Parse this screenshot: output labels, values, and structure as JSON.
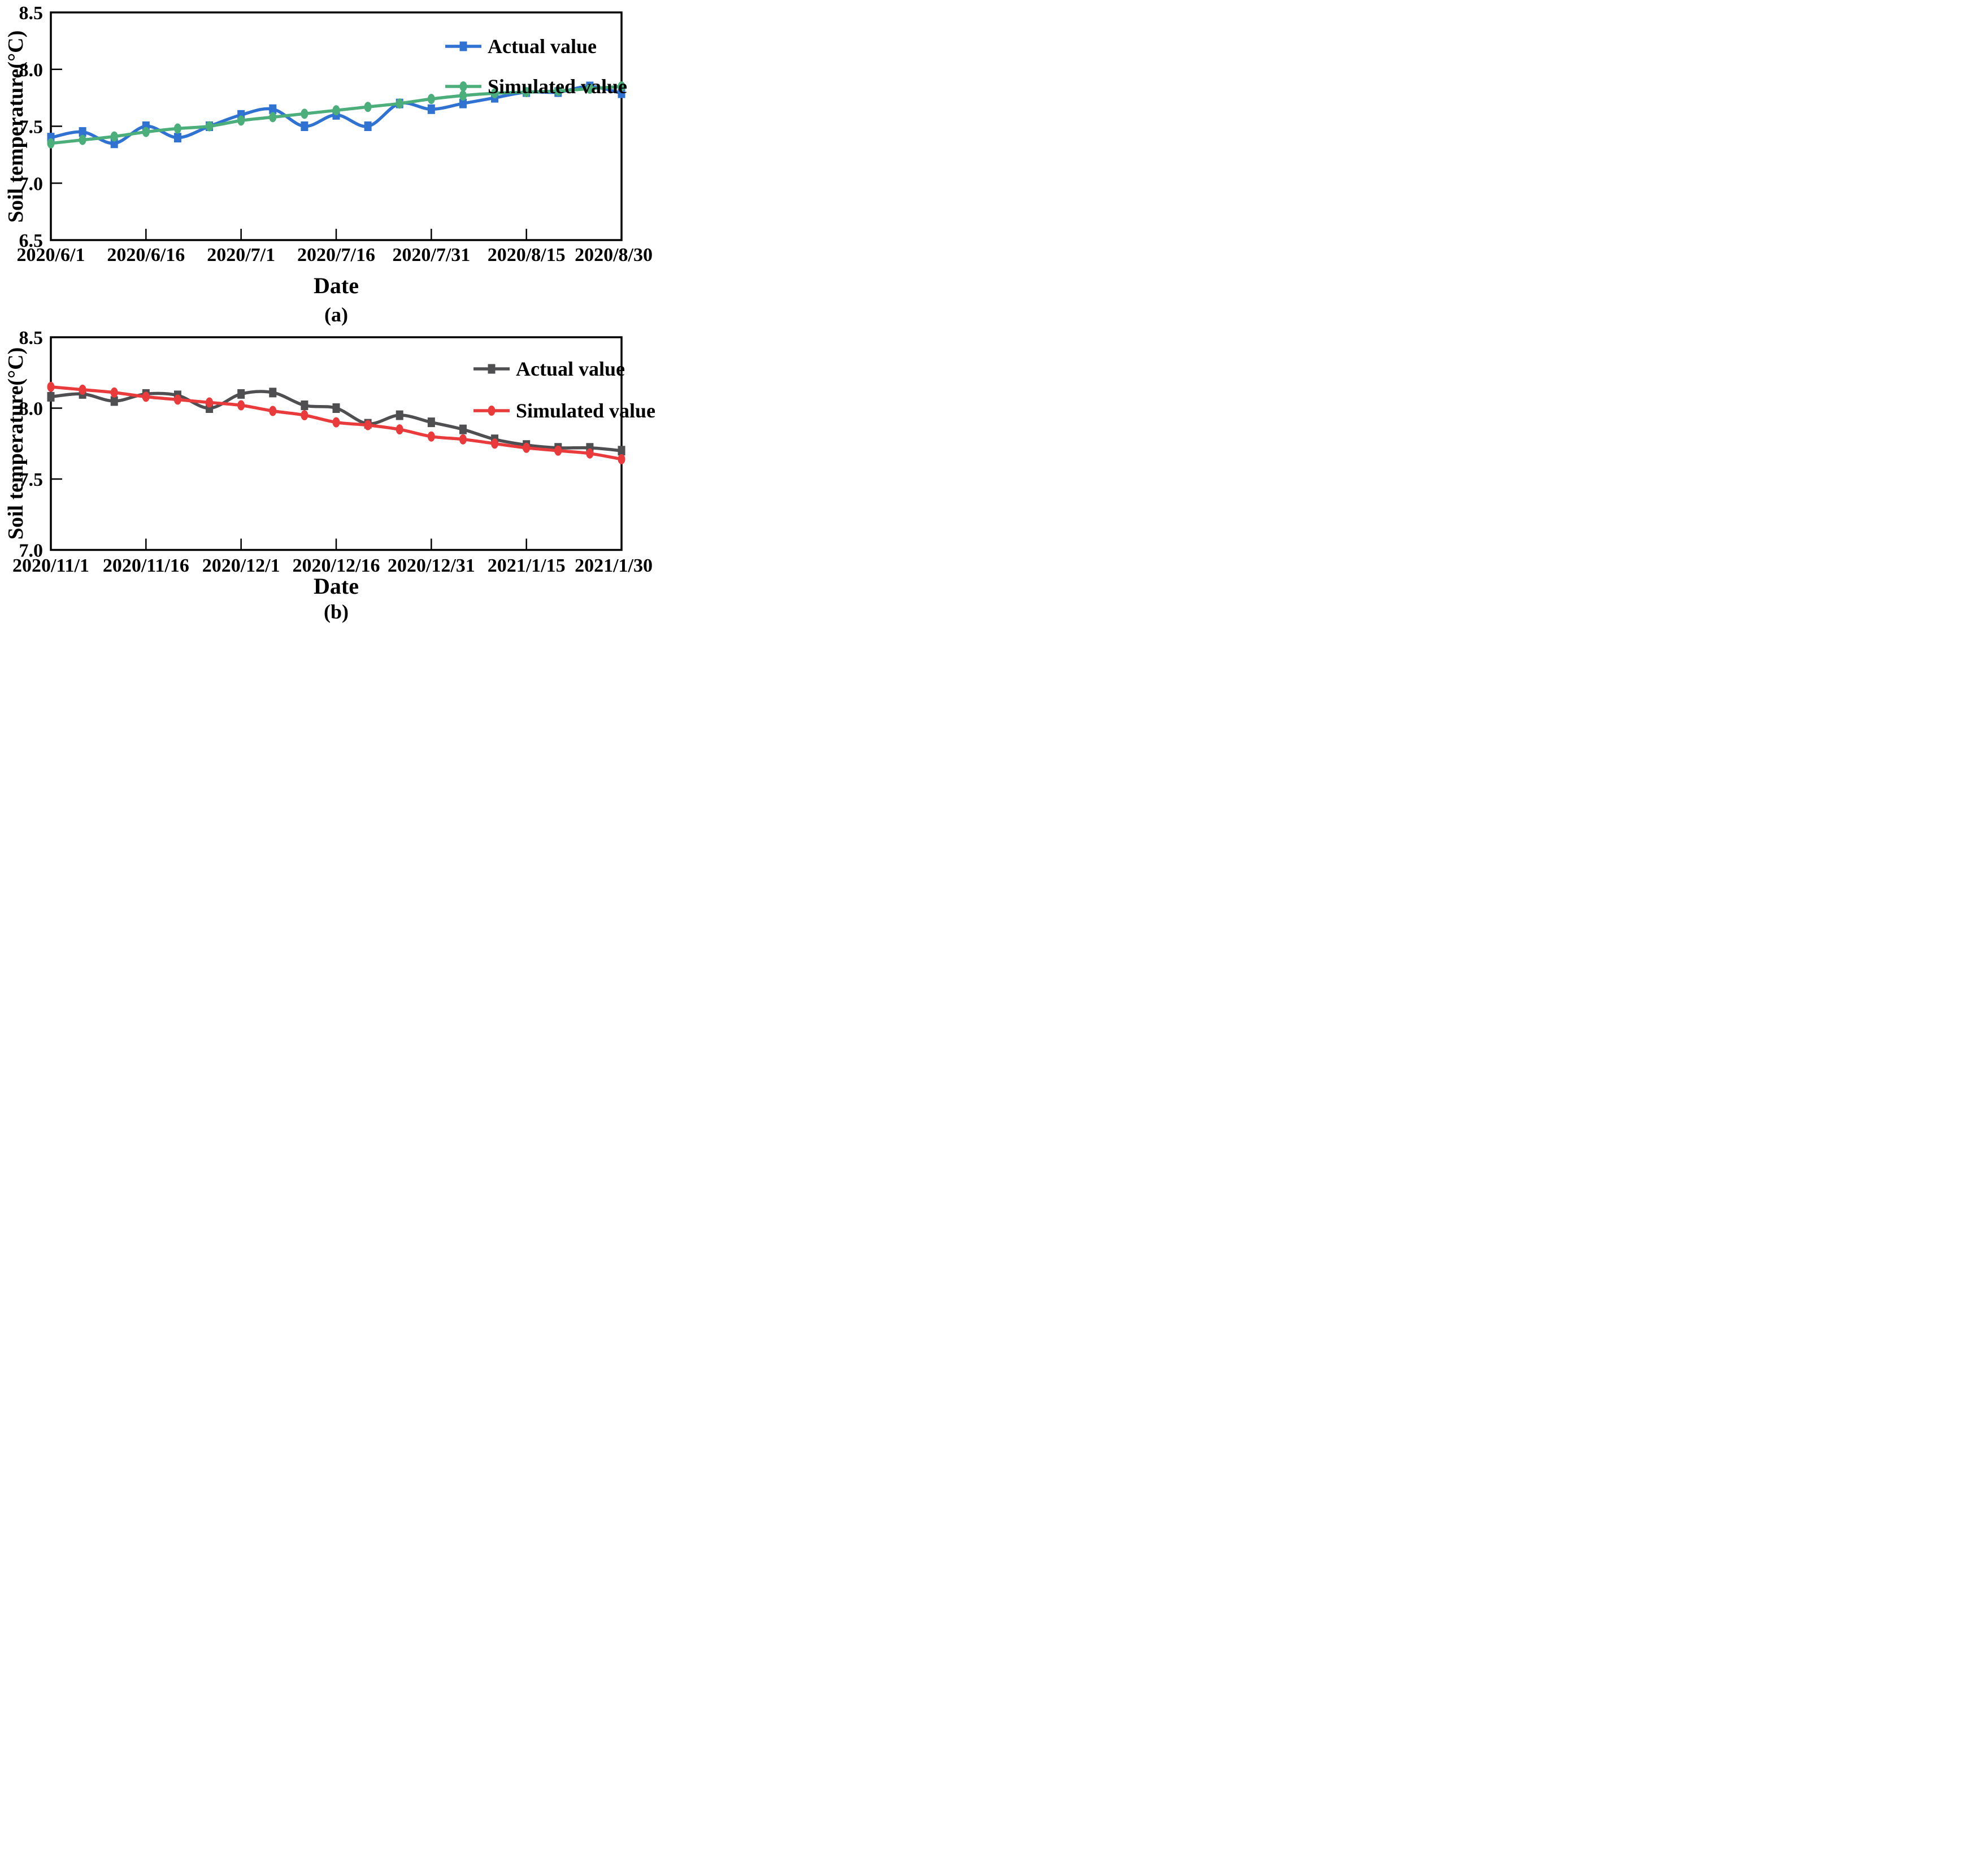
{
  "page": {
    "background": "#ffffff"
  },
  "panels": [
    {
      "panel_label": "(a)",
      "xlabel": "Date",
      "ylabel": "Soil temperature(°C)",
      "legend": [
        {
          "label": "Actual value",
          "color": "#2F72D2",
          "marker": "square"
        },
        {
          "label": "Simulated value",
          "color": "#4BAE7B",
          "marker": "circle"
        }
      ]
    },
    {
      "panel_label": "(b)",
      "xlabel": "Date",
      "ylabel": "Soil temperature(°C)",
      "legend": [
        {
          "label": "Actual value",
          "color": "#4F4F51",
          "marker": "square"
        },
        {
          "label": "Simulated value",
          "color": "#E93A3C",
          "marker": "circle"
        }
      ]
    }
  ],
  "chart_data": [
    {
      "type": "line",
      "panel": "a",
      "title": "",
      "xlabel": "Date",
      "ylabel": "Soil temperature(°C)",
      "ylim": [
        6.5,
        8.5
      ],
      "y_tick_labels": [
        "8.5",
        "8.0",
        "7.5",
        "7.0",
        "6.5"
      ],
      "y_tick_values": [
        8.5,
        8.0,
        7.5,
        7.0,
        6.5
      ],
      "x_tick_labels": [
        "2020/6/1",
        "2020/6/16",
        "2020/7/1",
        "2020/7/16",
        "2020/7/31",
        "2020/8/15",
        "2020/8/30"
      ],
      "x_tick_indices": [
        0,
        3,
        6,
        9,
        12,
        15,
        18
      ],
      "grid": false,
      "legend_position": "top-right",
      "x": [
        "2020/6/1",
        "2020/6/6",
        "2020/6/11",
        "2020/6/16",
        "2020/6/21",
        "2020/6/26",
        "2020/7/1",
        "2020/7/6",
        "2020/7/11",
        "2020/7/16",
        "2020/7/21",
        "2020/7/26",
        "2020/7/31",
        "2020/8/5",
        "2020/8/10",
        "2020/8/15",
        "2020/8/20",
        "2020/8/25",
        "2020/8/30"
      ],
      "series": [
        {
          "name": "Actual value",
          "color": "#2F72D2",
          "marker": "square",
          "values": [
            7.4,
            7.45,
            7.35,
            7.5,
            7.4,
            7.5,
            7.6,
            7.65,
            7.5,
            7.6,
            7.5,
            7.7,
            7.65,
            7.7,
            7.75,
            7.8,
            7.8,
            7.85,
            7.79
          ]
        },
        {
          "name": "Simulated value",
          "color": "#4BAE7B",
          "marker": "circle",
          "values": [
            7.35,
            7.38,
            7.41,
            7.45,
            7.48,
            7.5,
            7.55,
            7.58,
            7.61,
            7.64,
            7.67,
            7.7,
            7.74,
            7.77,
            7.79,
            7.8,
            7.81,
            7.83,
            7.85
          ]
        }
      ]
    },
    {
      "type": "line",
      "panel": "b",
      "title": "",
      "xlabel": "Date",
      "ylabel": "Soil temperature(°C)",
      "ylim": [
        7.0,
        8.5
      ],
      "y_tick_labels": [
        "8.5",
        "8.0",
        "7.5",
        "7.0"
      ],
      "y_tick_values": [
        8.5,
        8.0,
        7.5,
        7.0
      ],
      "x_tick_labels": [
        "2020/11/1",
        "2020/11/16",
        "2020/12/1",
        "2020/12/16",
        "2020/12/31",
        "2021/1/15",
        "2021/1/30"
      ],
      "x_tick_indices": [
        0,
        3,
        6,
        9,
        12,
        15,
        18
      ],
      "grid": false,
      "legend_position": "top-right",
      "x": [
        "2020/11/1",
        "2020/11/6",
        "2020/11/11",
        "2020/11/16",
        "2020/11/21",
        "2020/11/26",
        "2020/12/1",
        "2020/12/6",
        "2020/12/11",
        "2020/12/16",
        "2020/12/21",
        "2020/12/26",
        "2020/12/31",
        "2021/1/5",
        "2021/1/10",
        "2021/1/15",
        "2021/1/20",
        "2021/1/25",
        "2021/1/30"
      ],
      "series": [
        {
          "name": "Actual value",
          "color": "#4F4F51",
          "marker": "square",
          "values": [
            8.08,
            8.1,
            8.05,
            8.1,
            8.09,
            8.0,
            8.1,
            8.11,
            8.02,
            8.0,
            7.89,
            7.95,
            7.9,
            7.85,
            7.78,
            7.74,
            7.72,
            7.72,
            7.7
          ]
        },
        {
          "name": "Simulated value",
          "color": "#E93A3C",
          "marker": "circle",
          "values": [
            8.15,
            8.13,
            8.11,
            8.08,
            8.06,
            8.04,
            8.02,
            7.98,
            7.95,
            7.9,
            7.88,
            7.85,
            7.8,
            7.78,
            7.75,
            7.72,
            7.7,
            7.68,
            7.64
          ]
        }
      ]
    }
  ]
}
